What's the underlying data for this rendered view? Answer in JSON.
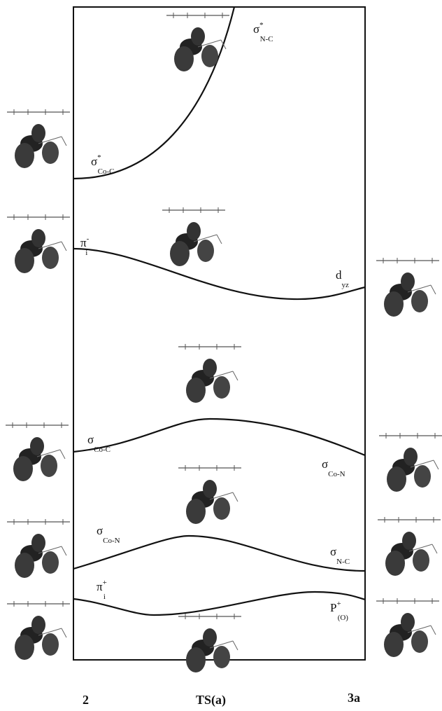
{
  "labels": [
    {
      "base": "σ",
      "sup": "*",
      "sub": "N-C"
    },
    {
      "base": "σ",
      "sup": "*",
      "sub": "Co-C"
    },
    {
      "base": "π",
      "sup": "-",
      "sub": "i"
    },
    {
      "base": "d",
      "sub": "yz"
    },
    {
      "base": "σ",
      "sub": "Co-C"
    },
    {
      "base": "σ",
      "sub": "Co-N"
    },
    {
      "base": "σ",
      "sub": "Co-N"
    },
    {
      "base": "σ",
      "sub": "N-C"
    },
    {
      "base": "π",
      "sup": "+",
      "sub": "i"
    },
    {
      "base": "P",
      "sup": "+",
      "sub": "(O)"
    }
  ],
  "columns": [
    "2",
    "TS(a)",
    "3a"
  ]
}
